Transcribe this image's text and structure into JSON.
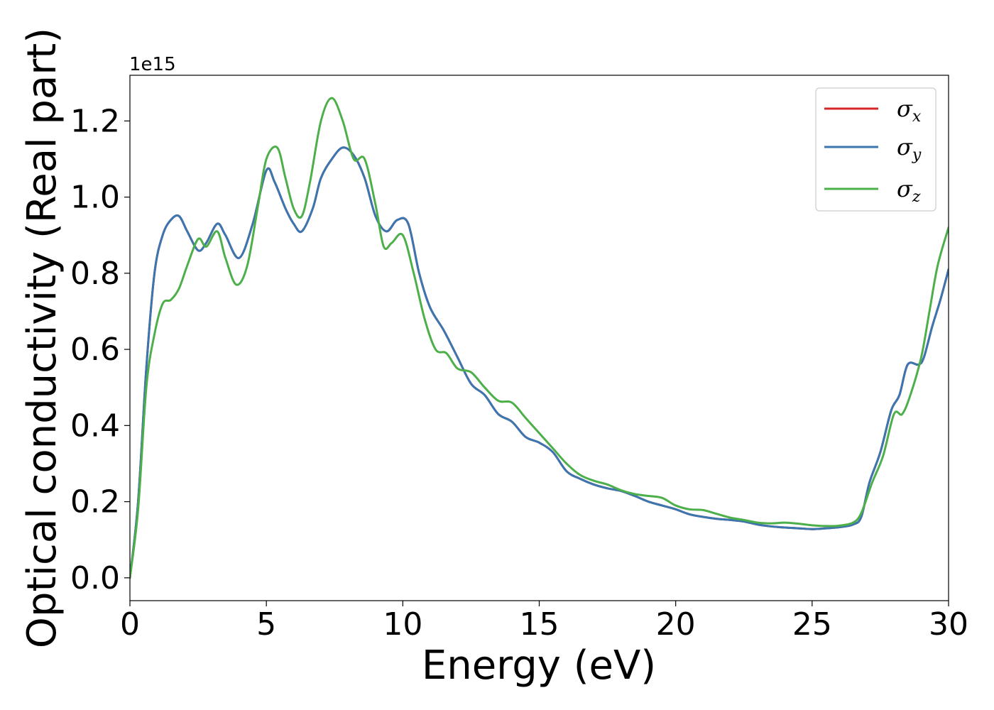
{
  "chart_data": {
    "type": "line",
    "title": "",
    "xlabel": "Energy (eV)",
    "ylabel": "Optical conductivity (Real part)",
    "y_offset_label": "1e15",
    "y_scale_factor": 1000000000000000.0,
    "xlim": [
      0,
      30
    ],
    "ylim": [
      -0.06,
      1.32
    ],
    "x_ticks": [
      0,
      5,
      10,
      15,
      20,
      25,
      30
    ],
    "x_tick_labels": [
      "0",
      "5",
      "10",
      "15",
      "20",
      "25",
      "30"
    ],
    "y_ticks": [
      0.0,
      0.2,
      0.4,
      0.6,
      0.8,
      1.0,
      1.2
    ],
    "y_tick_labels": [
      "0.0",
      "0.2",
      "0.4",
      "0.6",
      "0.8",
      "1.0",
      "1.2"
    ],
    "grid": false,
    "legend_position": "top-right",
    "series": [
      {
        "name": "σx",
        "legend_symbol": "σ",
        "legend_subscript": "x",
        "color": "#d62728",
        "x": [
          0,
          0.3,
          0.6,
          0.9,
          1.2,
          1.5,
          1.8,
          2.1,
          2.5,
          2.8,
          3.2,
          3.5,
          4.0,
          4.5,
          5.0,
          5.3,
          5.7,
          6.0,
          6.3,
          6.7,
          7.0,
          7.4,
          7.8,
          8.2,
          8.6,
          9.0,
          9.4,
          9.8,
          10.2,
          10.6,
          11.0,
          11.5,
          12.0,
          12.5,
          13.0,
          13.5,
          14.0,
          14.5,
          15.0,
          15.5,
          16.0,
          16.5,
          17.0,
          17.5,
          18.0,
          18.5,
          19.0,
          19.5,
          20.0,
          20.5,
          21.0,
          21.5,
          22.0,
          22.5,
          23.0,
          23.5,
          24.0,
          24.5,
          25.0,
          25.5,
          26.0,
          26.5,
          26.8,
          27.1,
          27.5,
          27.9,
          28.2,
          28.5,
          28.9,
          29.1,
          29.4,
          29.7,
          30.0
        ],
        "y": [
          0.0,
          0.2,
          0.55,
          0.8,
          0.9,
          0.94,
          0.95,
          0.91,
          0.86,
          0.88,
          0.93,
          0.9,
          0.84,
          0.93,
          1.07,
          1.04,
          0.97,
          0.93,
          0.91,
          0.97,
          1.05,
          1.1,
          1.13,
          1.11,
          1.05,
          0.95,
          0.91,
          0.94,
          0.93,
          0.8,
          0.71,
          0.65,
          0.58,
          0.51,
          0.48,
          0.43,
          0.41,
          0.37,
          0.355,
          0.33,
          0.28,
          0.26,
          0.245,
          0.235,
          0.228,
          0.215,
          0.2,
          0.19,
          0.18,
          0.167,
          0.16,
          0.155,
          0.152,
          0.148,
          0.14,
          0.135,
          0.132,
          0.13,
          0.128,
          0.13,
          0.133,
          0.14,
          0.16,
          0.25,
          0.33,
          0.44,
          0.48,
          0.56,
          0.56,
          0.58,
          0.66,
          0.73,
          0.81
        ]
      },
      {
        "name": "σy",
        "legend_symbol": "σ",
        "legend_subscript": "y",
        "color": "#3a76b0",
        "x": [
          0,
          0.3,
          0.6,
          0.9,
          1.2,
          1.5,
          1.8,
          2.1,
          2.5,
          2.8,
          3.2,
          3.5,
          4.0,
          4.5,
          5.0,
          5.3,
          5.7,
          6.0,
          6.3,
          6.7,
          7.0,
          7.4,
          7.8,
          8.2,
          8.6,
          9.0,
          9.4,
          9.8,
          10.2,
          10.6,
          11.0,
          11.5,
          12.0,
          12.5,
          13.0,
          13.5,
          14.0,
          14.5,
          15.0,
          15.5,
          16.0,
          16.5,
          17.0,
          17.5,
          18.0,
          18.5,
          19.0,
          19.5,
          20.0,
          20.5,
          21.0,
          21.5,
          22.0,
          22.5,
          23.0,
          23.5,
          24.0,
          24.5,
          25.0,
          25.5,
          26.0,
          26.5,
          26.8,
          27.1,
          27.5,
          27.9,
          28.2,
          28.5,
          28.9,
          29.1,
          29.4,
          29.7,
          30.0
        ],
        "y": [
          0.0,
          0.2,
          0.55,
          0.8,
          0.9,
          0.94,
          0.95,
          0.91,
          0.86,
          0.88,
          0.93,
          0.9,
          0.84,
          0.93,
          1.07,
          1.04,
          0.97,
          0.93,
          0.91,
          0.97,
          1.05,
          1.1,
          1.13,
          1.11,
          1.05,
          0.95,
          0.91,
          0.94,
          0.93,
          0.8,
          0.71,
          0.65,
          0.58,
          0.51,
          0.48,
          0.43,
          0.41,
          0.37,
          0.355,
          0.33,
          0.28,
          0.26,
          0.245,
          0.235,
          0.228,
          0.215,
          0.2,
          0.19,
          0.18,
          0.167,
          0.16,
          0.155,
          0.152,
          0.148,
          0.14,
          0.135,
          0.132,
          0.13,
          0.128,
          0.13,
          0.133,
          0.14,
          0.16,
          0.25,
          0.33,
          0.44,
          0.48,
          0.56,
          0.56,
          0.58,
          0.66,
          0.73,
          0.81
        ]
      },
      {
        "name": "σz",
        "legend_symbol": "σ",
        "legend_subscript": "z",
        "color": "#4daf4a",
        "x": [
          0,
          0.3,
          0.6,
          0.9,
          1.2,
          1.5,
          1.8,
          2.1,
          2.5,
          2.8,
          3.2,
          3.5,
          3.9,
          4.3,
          4.7,
          5.0,
          5.4,
          5.7,
          6.0,
          6.3,
          6.6,
          7.0,
          7.4,
          7.8,
          8.2,
          8.6,
          9.0,
          9.3,
          9.6,
          10.0,
          10.4,
          10.8,
          11.2,
          11.6,
          12.0,
          12.5,
          13.0,
          13.5,
          14.0,
          14.5,
          15.0,
          15.5,
          16.0,
          16.5,
          17.0,
          17.5,
          18.0,
          18.5,
          19.0,
          19.5,
          20.0,
          20.5,
          21.0,
          21.5,
          22.0,
          22.5,
          23.0,
          23.5,
          24.0,
          24.5,
          25.0,
          25.5,
          26.0,
          26.5,
          26.8,
          27.2,
          27.6,
          28.0,
          28.3,
          28.6,
          29.0,
          29.3,
          29.6,
          30.0
        ],
        "y": [
          0.0,
          0.18,
          0.5,
          0.64,
          0.72,
          0.73,
          0.76,
          0.82,
          0.89,
          0.87,
          0.91,
          0.84,
          0.77,
          0.82,
          0.98,
          1.1,
          1.13,
          1.05,
          0.97,
          0.95,
          1.04,
          1.2,
          1.26,
          1.2,
          1.1,
          1.1,
          0.98,
          0.87,
          0.88,
          0.9,
          0.8,
          0.68,
          0.6,
          0.59,
          0.55,
          0.54,
          0.5,
          0.465,
          0.46,
          0.42,
          0.38,
          0.34,
          0.3,
          0.27,
          0.255,
          0.245,
          0.23,
          0.22,
          0.215,
          0.21,
          0.19,
          0.18,
          0.178,
          0.168,
          0.158,
          0.152,
          0.145,
          0.143,
          0.145,
          0.142,
          0.138,
          0.136,
          0.137,
          0.145,
          0.17,
          0.25,
          0.32,
          0.43,
          0.43,
          0.48,
          0.58,
          0.7,
          0.82,
          0.92
        ]
      }
    ]
  }
}
